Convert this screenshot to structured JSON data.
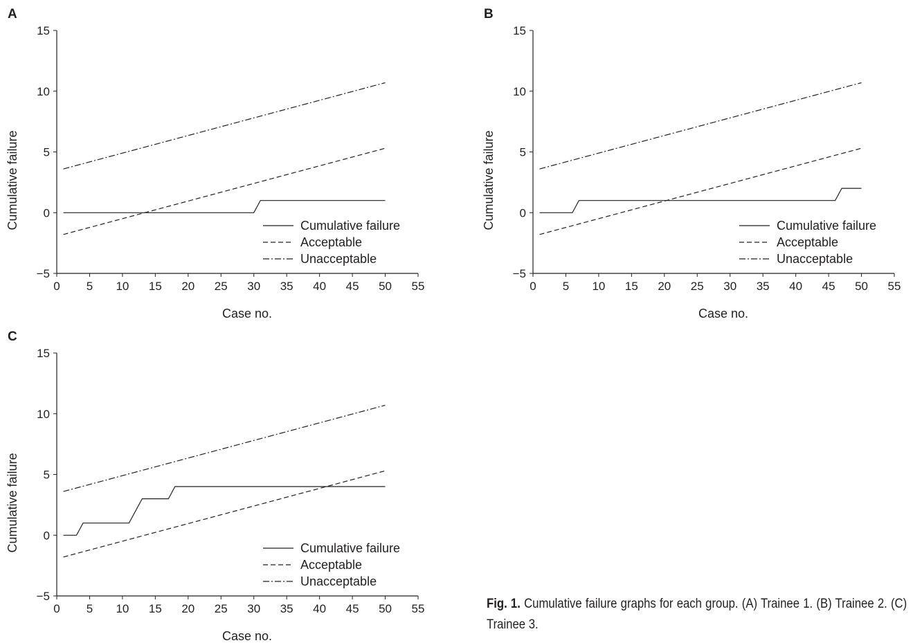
{
  "chart_data": [
    {
      "panel": "A",
      "type": "line",
      "xlabel": "Case no.",
      "ylabel": "Cumulative failure",
      "xlim": [
        0,
        55
      ],
      "ylim": [
        -5,
        15
      ],
      "xticks": [
        0,
        5,
        10,
        15,
        20,
        25,
        30,
        35,
        40,
        45,
        50,
        55
      ],
      "yticks": [
        -5,
        0,
        5,
        10,
        15
      ],
      "xtick_labels": [
        "0",
        "5",
        "10",
        "15",
        "20",
        "25",
        "30",
        "35",
        "40",
        "45",
        "50",
        "55"
      ],
      "ytick_labels": [
        "−5",
        "0",
        "5",
        "10",
        "15"
      ],
      "legend_position": "bottom-right",
      "series": [
        {
          "name": "Cumulative failure",
          "style": "solid",
          "x": [
            1,
            30,
            31,
            50
          ],
          "y": [
            0,
            0,
            1,
            1
          ]
        },
        {
          "name": "Acceptable",
          "style": "dashed",
          "x": [
            1,
            50
          ],
          "y": [
            -1.8,
            5.3
          ]
        },
        {
          "name": "Unacceptable",
          "style": "dashdot",
          "x": [
            1,
            50
          ],
          "y": [
            3.6,
            10.7
          ]
        }
      ]
    },
    {
      "panel": "B",
      "type": "line",
      "xlabel": "Case no.",
      "ylabel": "Cumulative failure",
      "xlim": [
        0,
        55
      ],
      "ylim": [
        -5,
        15
      ],
      "xticks": [
        0,
        5,
        10,
        15,
        20,
        25,
        30,
        35,
        40,
        45,
        50,
        55
      ],
      "yticks": [
        -5,
        0,
        5,
        10,
        15
      ],
      "xtick_labels": [
        "0",
        "5",
        "10",
        "15",
        "20",
        "25",
        "30",
        "35",
        "40",
        "45",
        "50",
        "55"
      ],
      "ytick_labels": [
        "−5",
        "0",
        "5",
        "10",
        "15"
      ],
      "legend_position": "bottom-right",
      "series": [
        {
          "name": "Cumulative failure",
          "style": "solid",
          "x": [
            1,
            6,
            7,
            46,
            47,
            50
          ],
          "y": [
            0,
            0,
            1,
            1,
            2,
            2
          ]
        },
        {
          "name": "Acceptable",
          "style": "dashed",
          "x": [
            1,
            50
          ],
          "y": [
            -1.8,
            5.3
          ]
        },
        {
          "name": "Unacceptable",
          "style": "dashdot",
          "x": [
            1,
            50
          ],
          "y": [
            3.6,
            10.7
          ]
        }
      ]
    },
    {
      "panel": "C",
      "type": "line",
      "xlabel": "Case no.",
      "ylabel": "Cumulative failure",
      "xlim": [
        0,
        55
      ],
      "ylim": [
        -5,
        15
      ],
      "xticks": [
        0,
        5,
        10,
        15,
        20,
        25,
        30,
        35,
        40,
        45,
        50,
        55
      ],
      "yticks": [
        -5,
        0,
        5,
        10,
        15
      ],
      "xtick_labels": [
        "0",
        "5",
        "10",
        "15",
        "20",
        "25",
        "30",
        "35",
        "40",
        "45",
        "50",
        "55"
      ],
      "ytick_labels": [
        "−5",
        "0",
        "5",
        "10",
        "15"
      ],
      "legend_position": "bottom-right",
      "series": [
        {
          "name": "Cumulative failure",
          "style": "solid",
          "x": [
            1,
            3,
            4,
            11,
            13,
            17,
            18,
            50
          ],
          "y": [
            0,
            0,
            1,
            1,
            3,
            3,
            4,
            4
          ]
        },
        {
          "name": "Acceptable",
          "style": "dashed",
          "x": [
            1,
            50
          ],
          "y": [
            -1.8,
            5.3
          ]
        },
        {
          "name": "Unacceptable",
          "style": "dashdot",
          "x": [
            1,
            50
          ],
          "y": [
            3.6,
            10.7
          ]
        }
      ]
    }
  ],
  "caption": {
    "label": "Fig. 1.",
    "text": "Cumulative failure graphs for each group. (A) Trainee 1. (B) Trainee 2. (C) Trainee 3."
  },
  "colors": {
    "ink": "#231f20",
    "background": "#ffffff"
  }
}
